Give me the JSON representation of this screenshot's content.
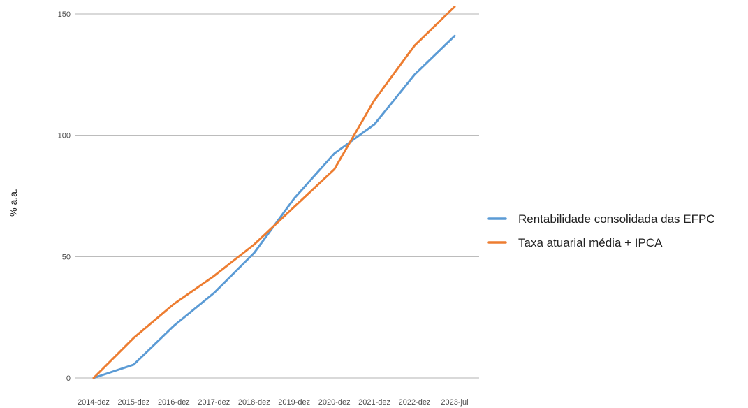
{
  "chart_data": {
    "type": "line",
    "title": "",
    "xlabel": "",
    "ylabel": "% a.a.",
    "categories": [
      "2014-dez",
      "2015-dez",
      "2016-dez",
      "2017-dez",
      "2018-dez",
      "2019-dez",
      "2020-dez",
      "2021-dez",
      "2022-dez",
      "2023-jul"
    ],
    "series": [
      {
        "name": "Rentabilidade consolidada das EFPC",
        "color": "#5b9bd5",
        "values": [
          0,
          5.5,
          21.5,
          35,
          51.5,
          74,
          92.5,
          104.5,
          125,
          141
        ]
      },
      {
        "name": "Taxa atuarial média + IPCA",
        "color": "#ed7d31",
        "values": [
          0,
          16.5,
          30.5,
          42,
          55,
          70.5,
          86,
          114.5,
          137,
          153
        ]
      }
    ],
    "ylim": [
      0,
      152
    ],
    "yticks": [
      0,
      50,
      100,
      150
    ],
    "grid": true,
    "legend_position": "right"
  }
}
